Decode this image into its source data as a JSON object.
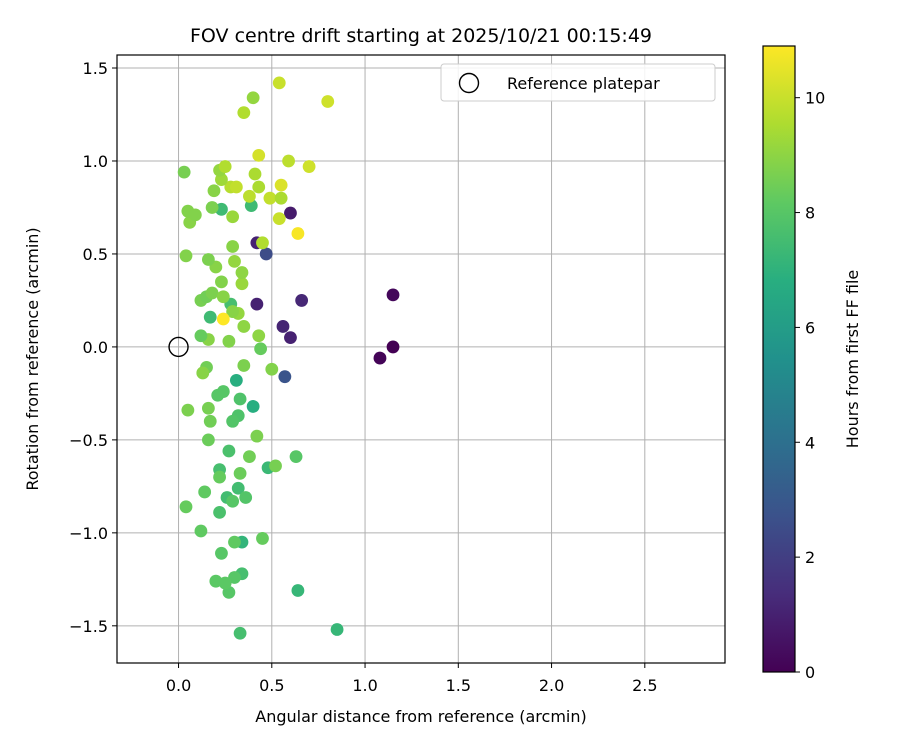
{
  "chart_data": {
    "type": "scatter",
    "title": "FOV centre drift starting at 2025/10/21 00:15:49",
    "xlabel": "Angular distance from reference (arcmin)",
    "ylabel": "Rotation from reference (arcmin)",
    "xlim": [
      -0.33,
      2.93
    ],
    "ylim": [
      -1.7,
      1.57
    ],
    "xticks": [
      0.0,
      0.5,
      1.0,
      1.5,
      2.0,
      2.5
    ],
    "xtick_labels": [
      "0.0",
      "0.5",
      "1.0",
      "1.5",
      "2.0",
      "2.5"
    ],
    "yticks": [
      -1.5,
      -1.0,
      -0.5,
      0.0,
      0.5,
      1.0,
      1.5
    ],
    "ytick_labels": [
      "−1.5",
      "−1.0",
      "−0.5",
      "0.0",
      "0.5",
      "1.0",
      "1.5"
    ],
    "grid": true,
    "legend": {
      "position": "top-right",
      "entries": [
        "Reference platepar"
      ]
    },
    "reference": {
      "label": "Reference platepar",
      "x": 0.0,
      "y": 0.0
    },
    "colorbar": {
      "label": "Hours from first FF file",
      "range": [
        0,
        10.9
      ],
      "colormap": "viridis",
      "ticks": [
        0,
        2,
        4,
        6,
        8,
        10
      ],
      "tick_labels": [
        "0",
        "2",
        "4",
        "6",
        "8",
        "10"
      ]
    },
    "points": [
      {
        "x": 1.15,
        "y": 0.0,
        "h": 0.0
      },
      {
        "x": 1.08,
        "y": -0.06,
        "h": 0.1
      },
      {
        "x": 1.15,
        "y": 0.28,
        "h": 0.2
      },
      {
        "x": 0.6,
        "y": 0.72,
        "h": 0.8
      },
      {
        "x": 0.42,
        "y": 0.56,
        "h": 1.0
      },
      {
        "x": 0.42,
        "y": 0.23,
        "h": 1.0
      },
      {
        "x": 0.56,
        "y": 0.11,
        "h": 1.1
      },
      {
        "x": 0.6,
        "y": 0.05,
        "h": 1.0
      },
      {
        "x": 0.66,
        "y": 0.25,
        "h": 1.2
      },
      {
        "x": 0.47,
        "y": 0.5,
        "h": 2.5
      },
      {
        "x": 0.57,
        "y": -0.16,
        "h": 2.8
      },
      {
        "x": 0.31,
        "y": -0.18,
        "h": 6.8
      },
      {
        "x": 0.4,
        "y": -0.32,
        "h": 6.8
      },
      {
        "x": 0.85,
        "y": -1.52,
        "h": 7.2
      },
      {
        "x": 0.64,
        "y": -1.31,
        "h": 7.2
      },
      {
        "x": 0.34,
        "y": -1.05,
        "h": 7.1
      },
      {
        "x": 0.48,
        "y": -0.65,
        "h": 7.3
      },
      {
        "x": 0.23,
        "y": 0.74,
        "h": 7.4
      },
      {
        "x": 0.39,
        "y": 0.76,
        "h": 7.4
      },
      {
        "x": 0.17,
        "y": 0.16,
        "h": 7.4
      },
      {
        "x": 0.32,
        "y": -0.76,
        "h": 7.5
      },
      {
        "x": 0.26,
        "y": -0.81,
        "h": 7.5
      },
      {
        "x": 0.22,
        "y": -0.66,
        "h": 7.6
      },
      {
        "x": 0.33,
        "y": -1.54,
        "h": 7.6
      },
      {
        "x": 0.34,
        "y": -1.22,
        "h": 7.6
      },
      {
        "x": 0.27,
        "y": -0.56,
        "h": 7.7
      },
      {
        "x": 0.22,
        "y": -0.89,
        "h": 7.7
      },
      {
        "x": 0.28,
        "y": 0.23,
        "h": 7.6
      },
      {
        "x": 0.33,
        "y": -0.28,
        "h": 7.8
      },
      {
        "x": 0.32,
        "y": -0.37,
        "h": 7.8
      },
      {
        "x": 0.29,
        "y": -0.4,
        "h": 7.9
      },
      {
        "x": 0.36,
        "y": -0.81,
        "h": 7.9
      },
      {
        "x": 0.29,
        "y": -0.83,
        "h": 8.0
      },
      {
        "x": 0.24,
        "y": -0.24,
        "h": 8.0
      },
      {
        "x": 0.21,
        "y": -0.26,
        "h": 8.0
      },
      {
        "x": 0.27,
        "y": -1.32,
        "h": 8.0
      },
      {
        "x": 0.3,
        "y": -1.24,
        "h": 8.0
      },
      {
        "x": 0.25,
        "y": -1.27,
        "h": 8.1
      },
      {
        "x": 0.2,
        "y": -1.26,
        "h": 8.1
      },
      {
        "x": 0.23,
        "y": -1.11,
        "h": 8.0
      },
      {
        "x": 0.3,
        "y": -1.05,
        "h": 8.2
      },
      {
        "x": 0.45,
        "y": -1.03,
        "h": 8.3
      },
      {
        "x": 0.12,
        "y": -0.99,
        "h": 8.2
      },
      {
        "x": 0.04,
        "y": -0.86,
        "h": 8.3
      },
      {
        "x": 0.14,
        "y": -0.78,
        "h": 8.2
      },
      {
        "x": 0.22,
        "y": -0.7,
        "h": 8.3
      },
      {
        "x": 0.33,
        "y": -0.68,
        "h": 8.4
      },
      {
        "x": 0.63,
        "y": -0.59,
        "h": 8.0
      },
      {
        "x": 0.52,
        "y": -0.64,
        "h": 8.6
      },
      {
        "x": 0.38,
        "y": -0.59,
        "h": 8.5
      },
      {
        "x": 0.16,
        "y": -0.5,
        "h": 8.4
      },
      {
        "x": 0.42,
        "y": -0.48,
        "h": 8.7
      },
      {
        "x": 0.17,
        "y": -0.4,
        "h": 8.5
      },
      {
        "x": 0.16,
        "y": -0.33,
        "h": 8.6
      },
      {
        "x": 0.05,
        "y": -0.34,
        "h": 8.7
      },
      {
        "x": 0.35,
        "y": -0.1,
        "h": 8.7
      },
      {
        "x": 0.5,
        "y": -0.12,
        "h": 8.8
      },
      {
        "x": 0.15,
        "y": -0.11,
        "h": 8.5
      },
      {
        "x": 0.13,
        "y": -0.14,
        "h": 8.9
      },
      {
        "x": 0.44,
        "y": -0.01,
        "h": 8.3
      },
      {
        "x": 0.27,
        "y": 0.03,
        "h": 8.8
      },
      {
        "x": 0.16,
        "y": 0.04,
        "h": 8.9
      },
      {
        "x": 0.12,
        "y": 0.06,
        "h": 8.3
      },
      {
        "x": 0.43,
        "y": 0.06,
        "h": 9.0
      },
      {
        "x": 0.35,
        "y": 0.11,
        "h": 9.0
      },
      {
        "x": 0.32,
        "y": 0.18,
        "h": 9.1
      },
      {
        "x": 0.29,
        "y": 0.19,
        "h": 8.9
      },
      {
        "x": 0.12,
        "y": 0.25,
        "h": 8.6
      },
      {
        "x": 0.15,
        "y": 0.27,
        "h": 8.5
      },
      {
        "x": 0.18,
        "y": 0.29,
        "h": 8.7
      },
      {
        "x": 0.24,
        "y": 0.27,
        "h": 8.9
      },
      {
        "x": 0.34,
        "y": 0.34,
        "h": 9.2
      },
      {
        "x": 0.23,
        "y": 0.35,
        "h": 8.8
      },
      {
        "x": 0.34,
        "y": 0.4,
        "h": 9.0
      },
      {
        "x": 0.2,
        "y": 0.43,
        "h": 8.9
      },
      {
        "x": 0.3,
        "y": 0.46,
        "h": 9.1
      },
      {
        "x": 0.16,
        "y": 0.47,
        "h": 8.7
      },
      {
        "x": 0.04,
        "y": 0.49,
        "h": 8.8
      },
      {
        "x": 0.29,
        "y": 0.54,
        "h": 8.9
      },
      {
        "x": 0.45,
        "y": 0.56,
        "h": 9.6
      },
      {
        "x": 0.06,
        "y": 0.67,
        "h": 8.9
      },
      {
        "x": 0.29,
        "y": 0.7,
        "h": 9.2
      },
      {
        "x": 0.05,
        "y": 0.73,
        "h": 8.8
      },
      {
        "x": 0.09,
        "y": 0.71,
        "h": 8.8
      },
      {
        "x": 0.18,
        "y": 0.75,
        "h": 8.7
      },
      {
        "x": 0.54,
        "y": 0.69,
        "h": 10.0
      },
      {
        "x": 0.49,
        "y": 0.8,
        "h": 9.9
      },
      {
        "x": 0.55,
        "y": 0.8,
        "h": 9.5
      },
      {
        "x": 0.38,
        "y": 0.81,
        "h": 9.8
      },
      {
        "x": 0.19,
        "y": 0.84,
        "h": 8.9
      },
      {
        "x": 0.43,
        "y": 0.86,
        "h": 9.5
      },
      {
        "x": 0.28,
        "y": 0.86,
        "h": 9.7
      },
      {
        "x": 0.31,
        "y": 0.86,
        "h": 9.9
      },
      {
        "x": 0.55,
        "y": 0.87,
        "h": 10.3
      },
      {
        "x": 0.23,
        "y": 0.9,
        "h": 9.3
      },
      {
        "x": 0.41,
        "y": 0.93,
        "h": 9.5
      },
      {
        "x": 0.22,
        "y": 0.95,
        "h": 9.1
      },
      {
        "x": 0.03,
        "y": 0.94,
        "h": 8.6
      },
      {
        "x": 0.25,
        "y": 0.97,
        "h": 9.6
      },
      {
        "x": 0.7,
        "y": 0.97,
        "h": 10.1
      },
      {
        "x": 0.59,
        "y": 1.0,
        "h": 9.8
      },
      {
        "x": 0.43,
        "y": 1.03,
        "h": 10.2
      },
      {
        "x": 0.35,
        "y": 1.26,
        "h": 9.6
      },
      {
        "x": 0.8,
        "y": 1.32,
        "h": 10.1
      },
      {
        "x": 0.4,
        "y": 1.34,
        "h": 9.1
      },
      {
        "x": 0.54,
        "y": 1.42,
        "h": 10.0
      },
      {
        "x": 0.24,
        "y": 0.15,
        "h": 10.9
      },
      {
        "x": 0.64,
        "y": 0.61,
        "h": 10.8
      }
    ]
  }
}
